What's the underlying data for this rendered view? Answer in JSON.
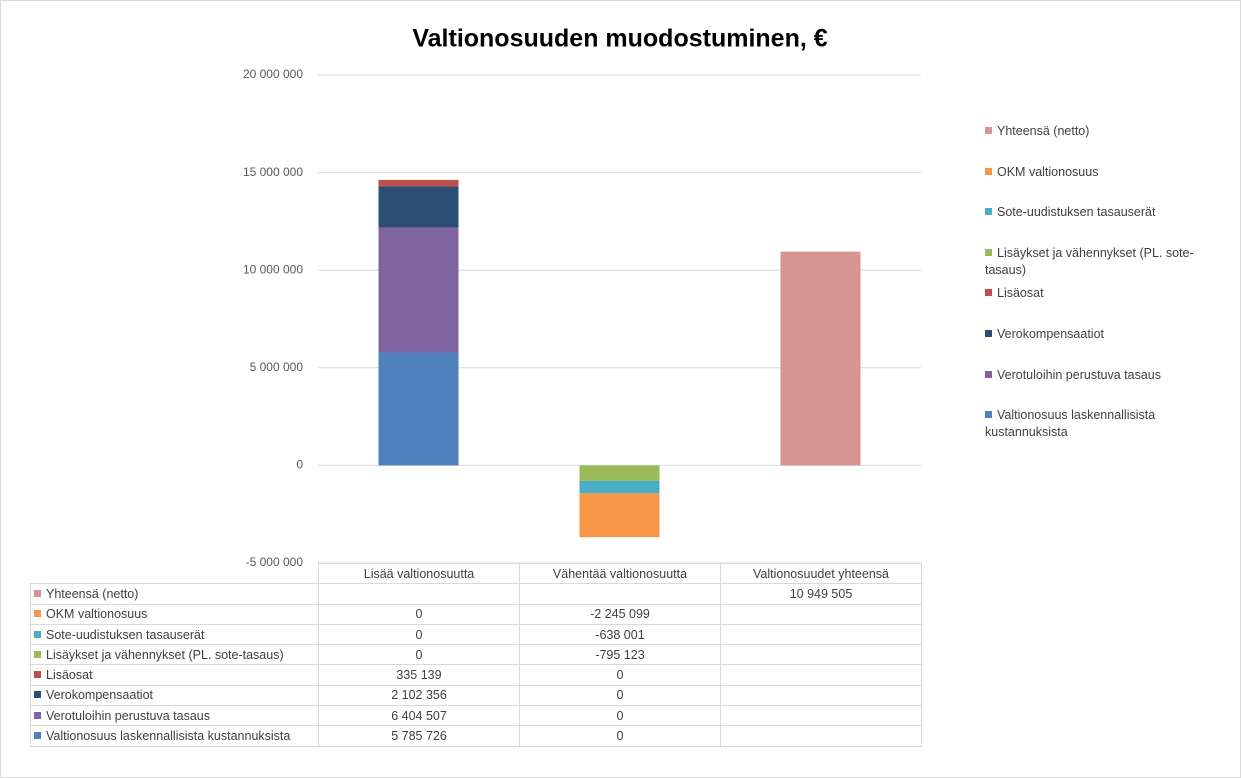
{
  "chart_data": {
    "type": "stacked_bar",
    "title": "Valtionosuuden muodostuminen, €",
    "categories": [
      "Lisää valtionosuutta",
      "Vähentää valtionosuutta",
      "Valtionosuudet yhteensä"
    ],
    "series": [
      {
        "name": "Valtionosuus laskennallisista kustannuksista",
        "color": "#4f81bd",
        "values": [
          5785726,
          0,
          null
        ],
        "value_labels": [
          "5 785 726",
          "0",
          null
        ]
      },
      {
        "name": "Verotuloihin perustuva tasaus",
        "color": "#8064a2",
        "values": [
          6404507,
          0,
          null
        ],
        "value_labels": [
          "6 404 507",
          "0",
          null
        ]
      },
      {
        "name": "Verokompensaatiot",
        "color": "#2c4d75",
        "values": [
          2102356,
          0,
          null
        ],
        "value_labels": [
          "2 102 356",
          "0",
          null
        ]
      },
      {
        "name": "Lisäosat",
        "color": "#c0504d",
        "values": [
          335139,
          0,
          null
        ],
        "value_labels": [
          "335 139",
          "0",
          null
        ]
      },
      {
        "name": "Lisäykset ja vähennykset (PL. sote-tasaus)",
        "color": "#9bbb59",
        "values": [
          0,
          -795123,
          null
        ],
        "value_labels": [
          "0",
          "-795 123",
          null
        ]
      },
      {
        "name": "Sote-uudistuksen tasauserät",
        "color": "#4bacc6",
        "values": [
          0,
          -638001,
          null
        ],
        "value_labels": [
          "0",
          "-638 001",
          null
        ]
      },
      {
        "name": "OKM valtionosuus",
        "color": "#f79646",
        "values": [
          0,
          -2245099,
          null
        ],
        "value_labels": [
          "0",
          "-2 245 099",
          null
        ]
      },
      {
        "name": "Yhteensä (netto)",
        "color": "#d69492",
        "values": [
          null,
          null,
          10949505
        ],
        "value_labels": [
          null,
          null,
          "10 949 505"
        ]
      }
    ],
    "ylim": [
      -5000000,
      20000000
    ],
    "yticks": [
      {
        "value": -5000000,
        "label": "-5 000 000"
      },
      0,
      {
        "value": 5000000,
        "label": "5 000 000"
      },
      {
        "value": 10000000,
        "label": "10 000 000"
      },
      {
        "value": 15000000,
        "label": "15 000 000"
      },
      {
        "value": 20000000,
        "label": "20 000 000"
      }
    ],
    "grid": true
  }
}
